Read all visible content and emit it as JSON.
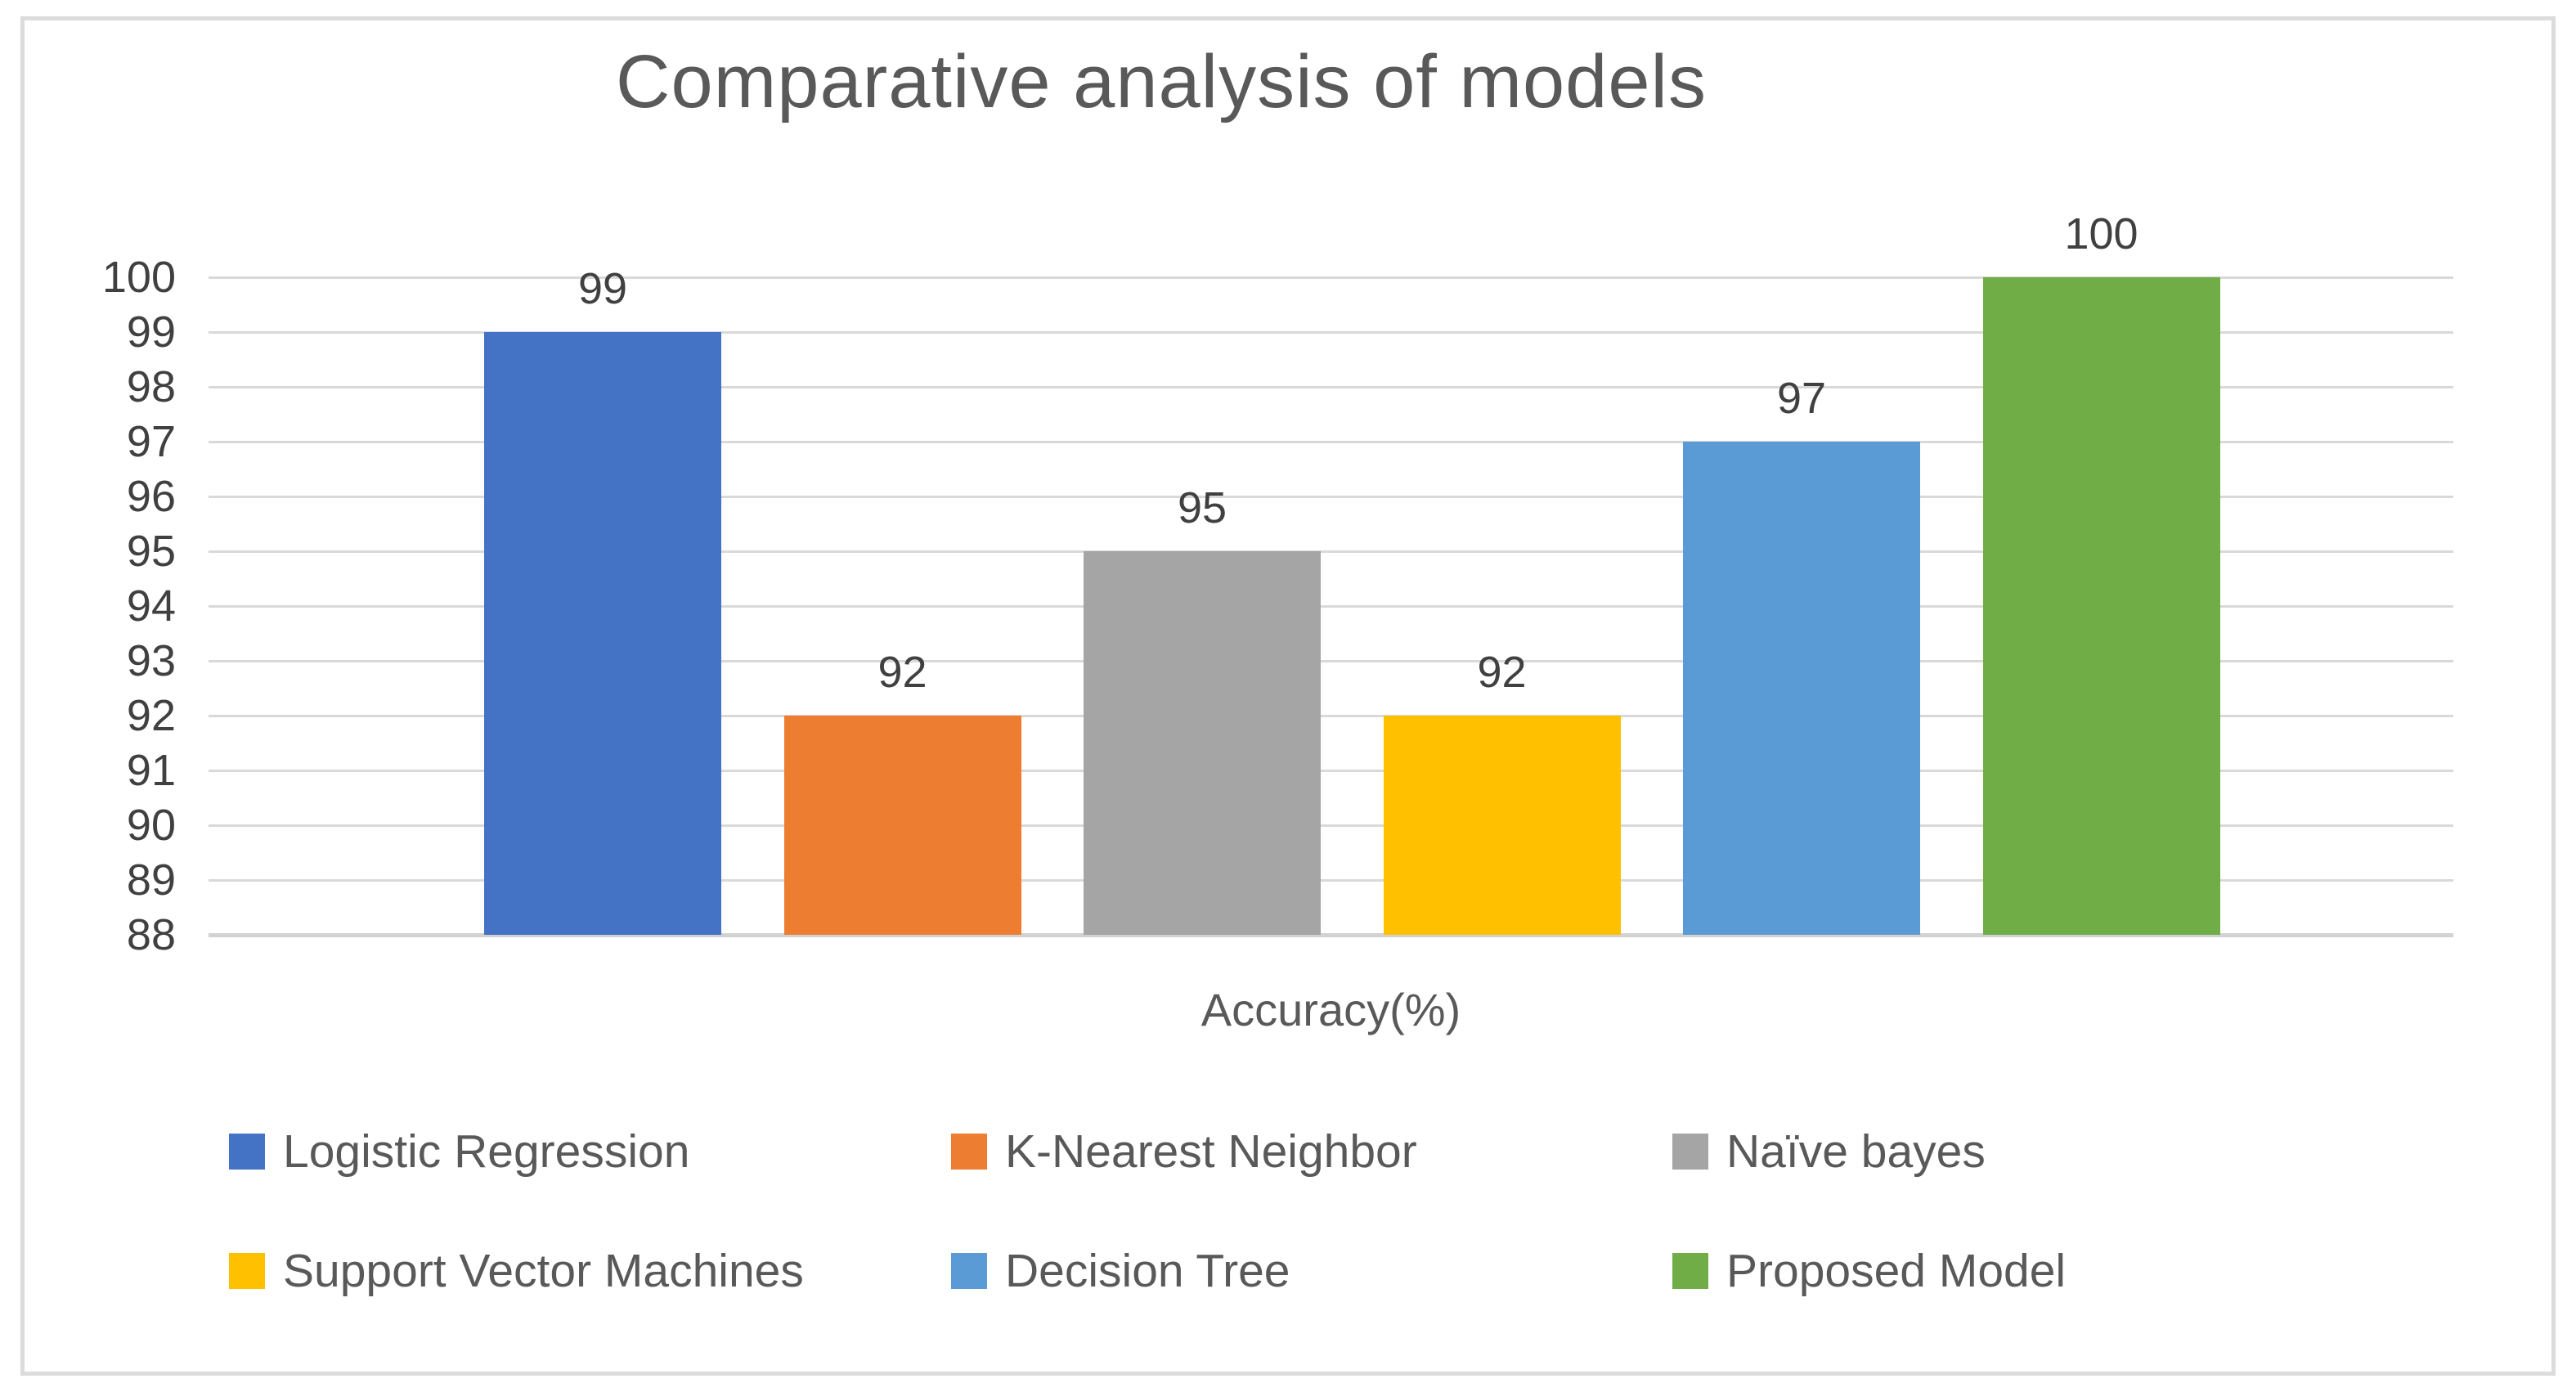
{
  "chart": {
    "title": "Comparative analysis of models",
    "xlabel": "Accuracy(%)"
  },
  "chart_data": {
    "type": "bar",
    "title": "Comparative analysis of models",
    "xlabel": "Accuracy(%)",
    "ylabel": "",
    "ylim": [
      88,
      100
    ],
    "ytick_step": 1,
    "yticks": [
      88,
      89,
      90,
      91,
      92,
      93,
      94,
      95,
      96,
      97,
      98,
      99,
      100
    ],
    "grid": true,
    "legend_position": "bottom",
    "categories": [
      "Accuracy(%)"
    ],
    "series": [
      {
        "name": "Logistic Regression",
        "value": 99,
        "color": "#4472C4"
      },
      {
        "name": "K-Nearest Neighbor",
        "value": 92,
        "color": "#ED7D31"
      },
      {
        "name": "Naïve bayes",
        "value": 95,
        "color": "#A5A5A5"
      },
      {
        "name": "Support Vector Machines",
        "value": 92,
        "color": "#FFC000"
      },
      {
        "name": "Decision Tree",
        "value": 97,
        "color": "#5B9BD5"
      },
      {
        "name": "Proposed Model",
        "value": 100,
        "color": "#70AD47"
      }
    ],
    "value_labels": [
      "99",
      "92",
      "95",
      "92",
      "97",
      "100"
    ],
    "colors": {
      "gridline": "#d9d9d9",
      "title_text": "#595959",
      "tick_text": "#404040",
      "legend_text": "#595959"
    }
  }
}
